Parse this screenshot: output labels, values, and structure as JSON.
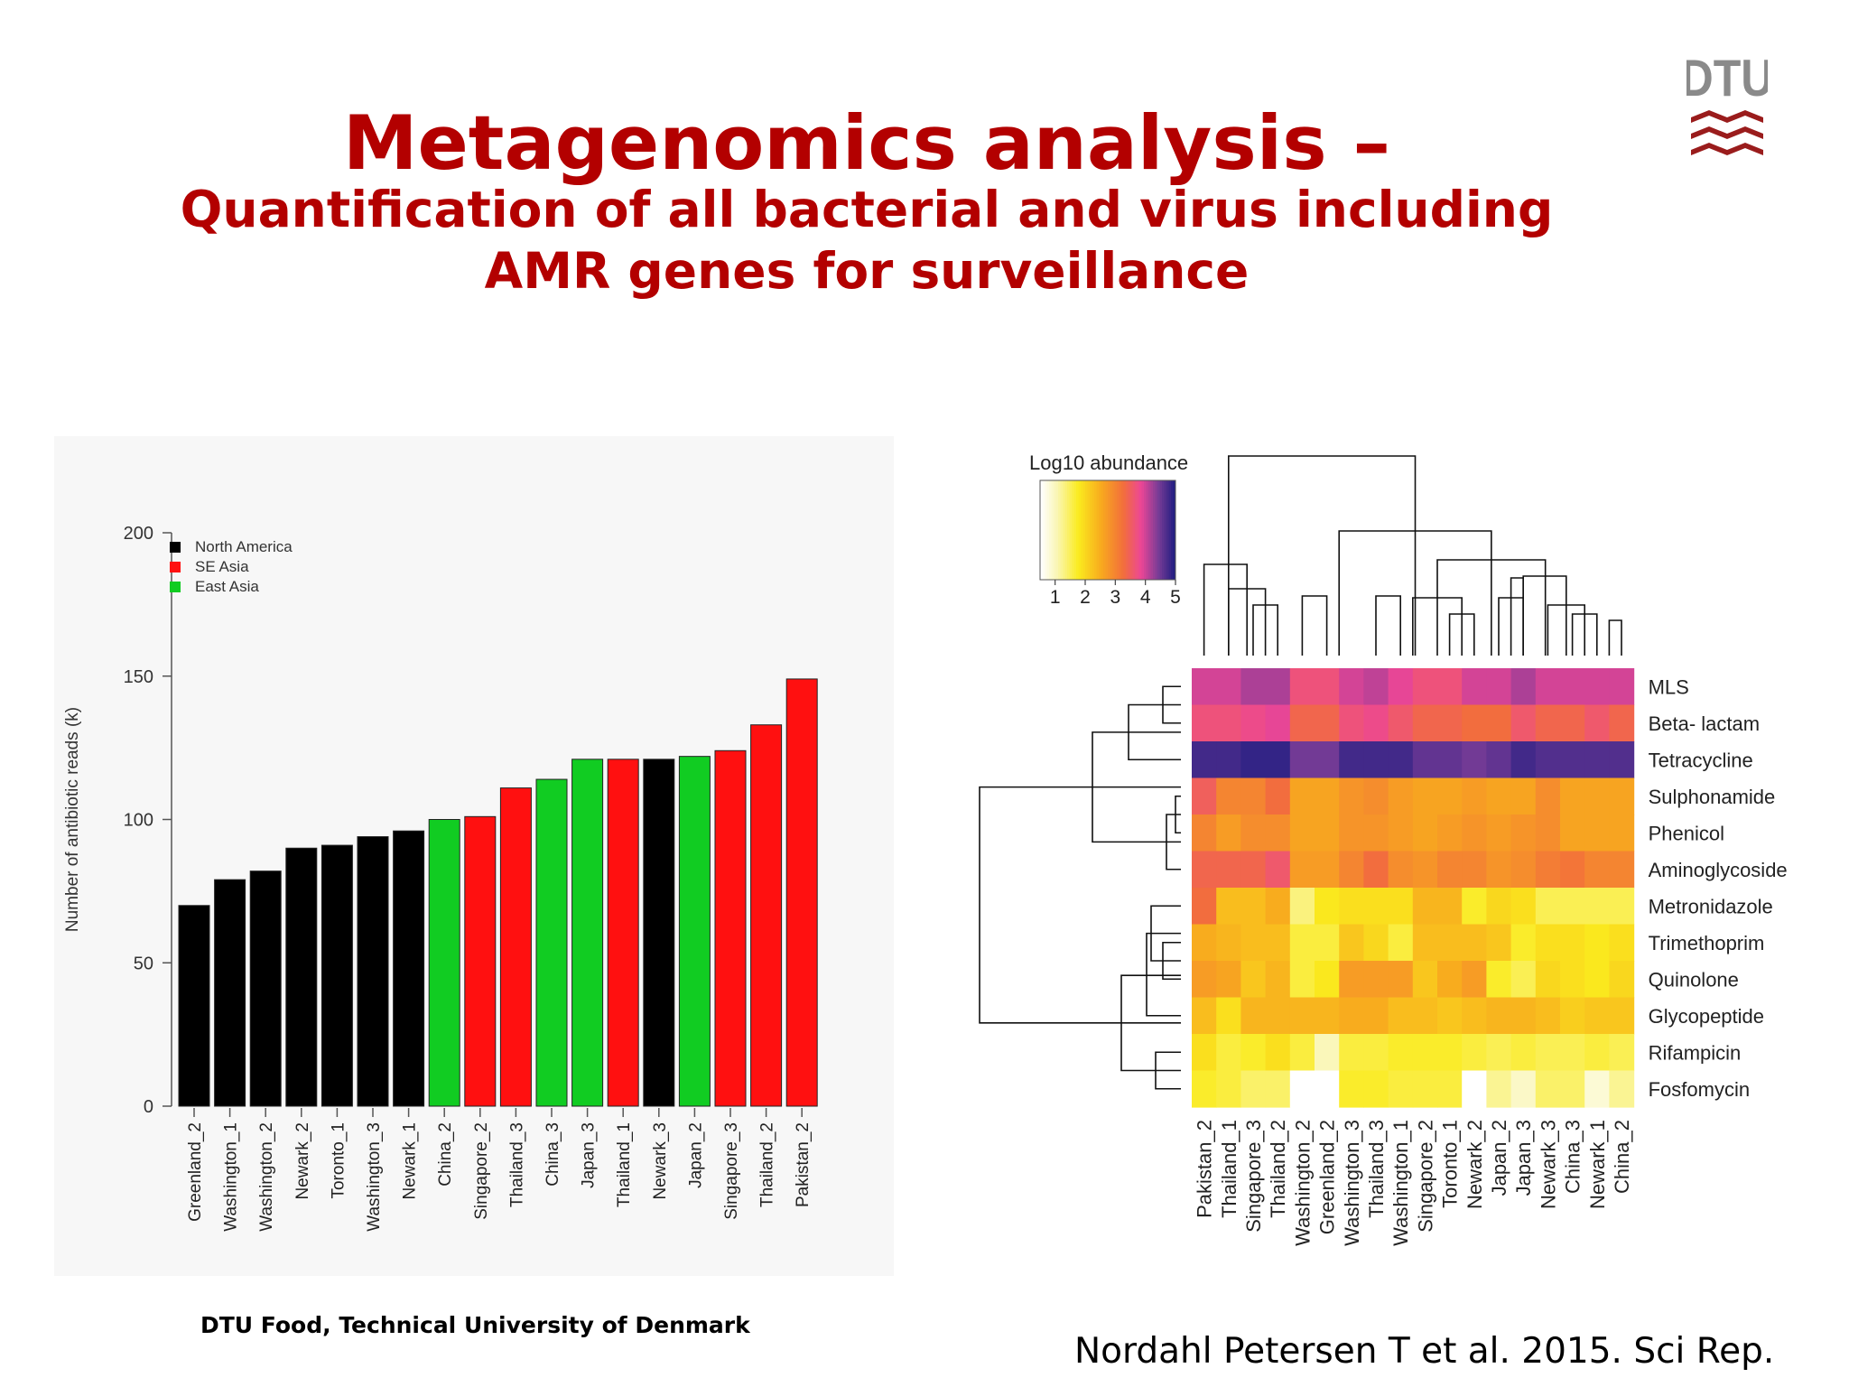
{
  "slide": {
    "title": "Metagenomics analysis –",
    "subtitle_line1": "Quantification of all bacterial and virus including",
    "subtitle_line2": "AMR genes for surveillance",
    "logo_text": "DTU",
    "footer_affiliation": "DTU Food, Technical University of Denmark",
    "citation": "Nordahl Petersen T et al. 2015. Sci Rep."
  },
  "colors": {
    "title": "#b30000",
    "north_america": "#000000",
    "se_asia": "#ff1010",
    "east_asia": "#11cc22",
    "logo": "#9a1c1c"
  },
  "chart_data": [
    {
      "type": "bar",
      "title": "",
      "xlabel": "",
      "ylabel": "Number of antibiotic reads (k)",
      "ylim": [
        0,
        200
      ],
      "yticks": [
        "0",
        "50",
        "100",
        "150",
        "200"
      ],
      "legend_position": "top-left",
      "legend": [
        {
          "name": "North America",
          "color": "#000000"
        },
        {
          "name": "SE Asia",
          "color": "#ff1010"
        },
        {
          "name": "East Asia",
          "color": "#11cc22"
        }
      ],
      "categories": [
        "Greenland_2",
        "Washington_1",
        "Washington_2",
        "Newark_2",
        "Toronto_1",
        "Washington_3",
        "Newark_1",
        "China_2",
        "Singapore_2",
        "Thailand_3",
        "China_3",
        "Japan_3",
        "Thailand_1",
        "Newark_3",
        "Japan_2",
        "Singapore_3",
        "Thailand_2",
        "Pakistan_2"
      ],
      "values": [
        70,
        79,
        82,
        90,
        91,
        94,
        96,
        100,
        101,
        111,
        114,
        121,
        121,
        121,
        122,
        124,
        133,
        149
      ],
      "groups": [
        "North America",
        "North America",
        "North America",
        "North America",
        "North America",
        "North America",
        "North America",
        "East Asia",
        "SE Asia",
        "SE Asia",
        "East Asia",
        "East Asia",
        "SE Asia",
        "North America",
        "East Asia",
        "SE Asia",
        "SE Asia",
        "SE Asia"
      ]
    },
    {
      "type": "heatmap",
      "legend_title": "Log10 abundance",
      "legend_ticks": [
        "1",
        "2",
        "3",
        "4",
        "5"
      ],
      "value_range": [
        0.5,
        5
      ],
      "columns": [
        "Pakistan_2",
        "Thailand_1",
        "Singapore_3",
        "Thailand_2",
        "Washington_2",
        "Greenland_2",
        "Washington_3",
        "Thailand_3",
        "Washington_1",
        "Singapore_2",
        "Toronto_1",
        "Newark_2",
        "Japan_2",
        "Japan_3",
        "Newark_3",
        "China_3",
        "Newark_1",
        "China_2"
      ],
      "rows": [
        "MLS",
        "Beta- lactam",
        "Tetracycline",
        "Sulphonamide",
        "Phenicol",
        "Aminoglycoside",
        "Metronidazole",
        "Trimethoprim",
        "Quinolone",
        "Glycopeptide",
        "Rifampicin",
        "Fosfomycin"
      ],
      "values": [
        [
          4.0,
          4.0,
          4.2,
          4.2,
          3.7,
          3.7,
          4.0,
          4.1,
          3.9,
          3.7,
          3.7,
          4.0,
          4.0,
          4.2,
          4.0,
          4.0,
          4.0,
          4.0
        ],
        [
          3.7,
          3.7,
          3.8,
          3.9,
          3.4,
          3.4,
          3.7,
          3.8,
          3.6,
          3.4,
          3.4,
          3.3,
          3.3,
          3.6,
          3.4,
          3.4,
          3.6,
          3.4
        ],
        [
          4.8,
          4.8,
          4.9,
          4.9,
          4.5,
          4.5,
          4.8,
          4.8,
          4.8,
          4.6,
          4.6,
          4.5,
          4.6,
          4.8,
          4.7,
          4.7,
          4.7,
          4.7
        ],
        [
          3.5,
          3.0,
          3.0,
          3.3,
          2.6,
          2.6,
          2.8,
          2.9,
          2.7,
          2.6,
          2.6,
          2.7,
          2.6,
          2.6,
          2.9,
          2.6,
          2.6,
          2.6
        ],
        [
          3.0,
          2.7,
          2.9,
          2.9,
          2.6,
          2.6,
          2.8,
          2.8,
          2.7,
          2.6,
          2.7,
          2.8,
          2.7,
          2.8,
          2.9,
          2.6,
          2.6,
          2.6
        ],
        [
          3.4,
          3.4,
          3.4,
          3.6,
          2.7,
          2.7,
          3.0,
          3.3,
          2.9,
          2.8,
          3.0,
          3.0,
          2.8,
          2.9,
          3.1,
          3.2,
          3.0,
          3.0
        ],
        [
          3.3,
          2.3,
          2.3,
          2.5,
          1.3,
          1.8,
          1.9,
          1.9,
          1.9,
          2.4,
          2.4,
          1.7,
          2.0,
          1.9,
          1.5,
          1.5,
          1.5,
          1.5
        ],
        [
          2.5,
          2.4,
          2.3,
          2.3,
          1.6,
          1.6,
          2.2,
          2.0,
          1.6,
          2.3,
          2.3,
          2.3,
          2.2,
          1.7,
          1.9,
          1.9,
          1.8,
          1.9
        ],
        [
          2.7,
          2.6,
          2.2,
          2.4,
          1.6,
          1.8,
          2.7,
          2.7,
          2.7,
          2.2,
          2.5,
          2.7,
          1.7,
          1.5,
          2.0,
          1.9,
          1.8,
          2.0
        ],
        [
          2.3,
          1.9,
          2.4,
          2.4,
          2.4,
          2.4,
          2.5,
          2.5,
          2.3,
          2.3,
          2.2,
          2.3,
          2.4,
          2.4,
          2.3,
          2.1,
          2.2,
          2.2
        ],
        [
          1.9,
          1.6,
          1.7,
          1.9,
          1.6,
          1.0,
          1.6,
          1.6,
          1.7,
          1.7,
          1.7,
          1.6,
          1.5,
          1.6,
          1.5,
          1.5,
          1.6,
          1.5
        ],
        [
          1.7,
          1.6,
          1.4,
          1.4,
          0,
          0,
          1.7,
          1.7,
          1.6,
          1.6,
          1.6,
          0,
          1.2,
          0.9,
          1.4,
          1.4,
          0.8,
          1.2
        ]
      ],
      "row_dendrogram": "hierarchical clustering tree of resistance classes",
      "column_dendrogram": "hierarchical clustering tree of samples"
    }
  ]
}
